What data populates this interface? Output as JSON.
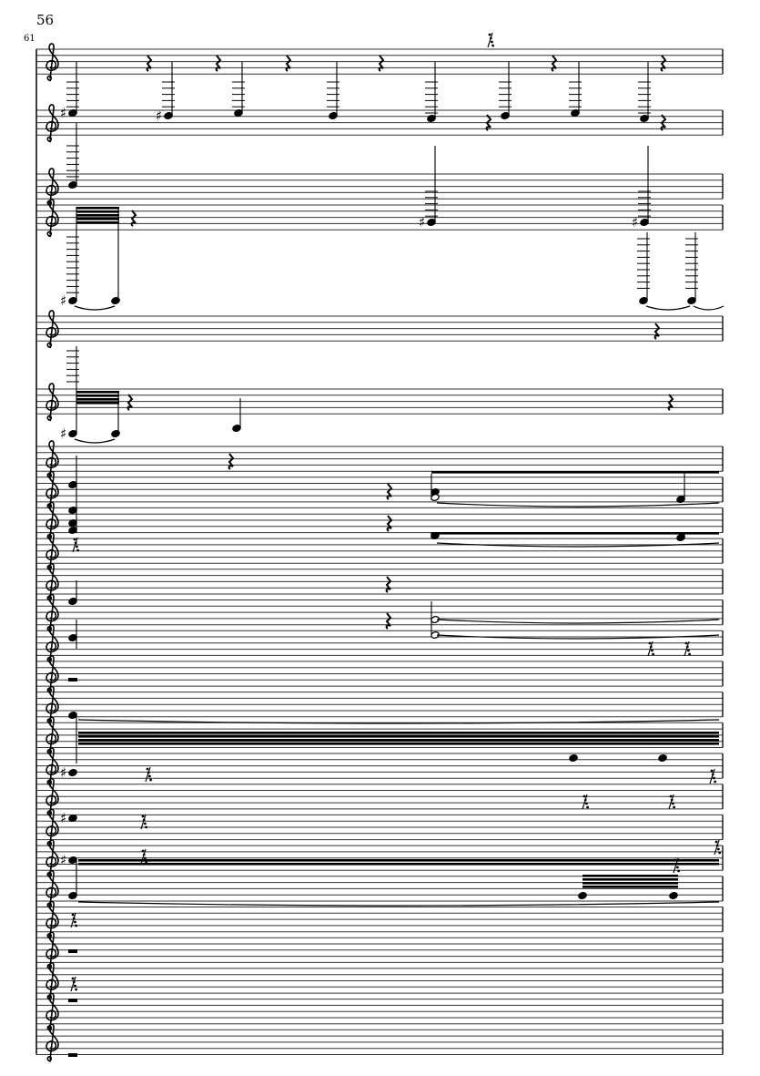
{
  "page": {
    "page_number": "56",
    "measure_number": "61"
  },
  "colors": {
    "ink": "#000000",
    "staff_line": "#333333",
    "paper": "#ffffff"
  },
  "glyphs": [
    "treble-clef",
    "quarter-rest",
    "sixteenth-rest",
    "whole-rest",
    "sharp",
    "tie",
    "beam"
  ]
}
